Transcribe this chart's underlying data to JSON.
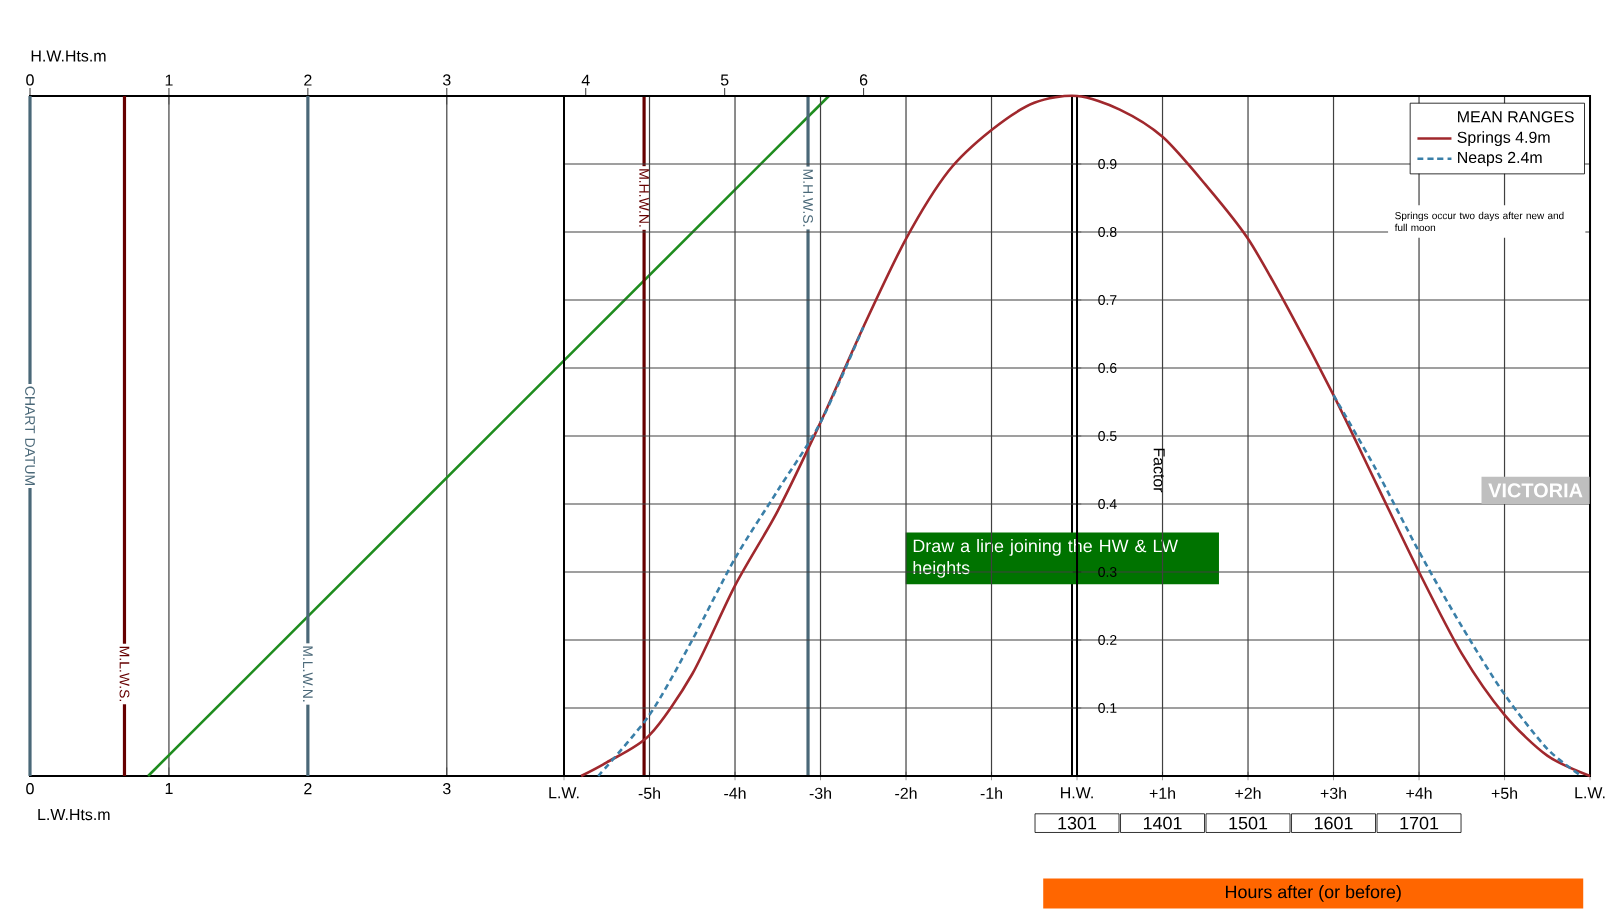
{
  "chart_data": [
    {
      "type": "line",
      "x2label": "H.W.Hts.m",
      "xlabel": "L.W.Hts.m",
      "xlim": [
        0,
        7.5
      ],
      "xticks": [
        0,
        1,
        2,
        3
      ],
      "x2lim": [
        0,
        7.5
      ],
      "x2ticks": [
        0,
        1,
        2,
        3,
        4,
        5,
        6
      ],
      "ylim": [
        0,
        1
      ],
      "tick_labels": "x",
      "grid": "x",
      "series": [
        {
          "color": "#1e8c1e",
          "x": [
            0.85,
            5.75
          ],
          "values": [
            0,
            1
          ]
        }
      ],
      "ref_lines": [
        {
          "axis": "x",
          "value": 0,
          "label": "CHART DATUM"
        },
        {
          "axis": "x",
          "value": 0.68,
          "label": "M.L.W.S."
        },
        {
          "axis": "x",
          "value": 2.0,
          "label": "M.L.W.N."
        },
        {
          "axis": "x",
          "value": 4.42,
          "label": "M.H.W.N."
        },
        {
          "axis": "x",
          "value": 5.6,
          "label": "M.H.W.S."
        }
      ],
      "annotations": [
        "Draw a line joining the HW & LW heights"
      ]
    },
    {
      "type": "line",
      "ylabel": "Factor",
      "xlim": [
        -6,
        6
      ],
      "ylim": [
        0,
        1
      ],
      "yticks": [
        0.1,
        0.2,
        0.3,
        0.4,
        0.5,
        0.6,
        0.7,
        0.8,
        0.9
      ],
      "xticks": [
        {
          "value": -6,
          "label": "L.W."
        },
        {
          "value": -5,
          "label": "-5h"
        },
        {
          "value": -4,
          "label": "-4h"
        },
        {
          "value": -3,
          "label": "-3h"
        },
        {
          "value": -2,
          "label": "-2h"
        },
        {
          "value": -1,
          "label": "-1h"
        },
        {
          "value": 0,
          "label": "H.W."
        },
        {
          "value": 1,
          "label": "+1h"
        },
        {
          "value": 2,
          "label": "+2h"
        },
        {
          "value": 3,
          "label": "+3h"
        },
        {
          "value": 4,
          "label": "+4h"
        },
        {
          "value": 5,
          "label": "+5h"
        },
        {
          "value": 6,
          "label": "L.W."
        }
      ],
      "grid": true,
      "legend": "top right",
      "legend_title": "MEAN RANGES",
      "series": [
        {
          "name": "Springs  4.9m",
          "color": "#a0282d",
          "line_style": "solid",
          "x": [
            -5.8,
            -5.5,
            -5,
            -4.5,
            -4,
            -3.5,
            -3,
            -2.5,
            -2,
            -1.5,
            -1,
            -0.5,
            0,
            0.5,
            1,
            1.5,
            2,
            2.5,
            3,
            3.5,
            4,
            4.5,
            5,
            5.5,
            6
          ],
          "values": [
            0,
            0.02,
            0.06,
            0.15,
            0.28,
            0.39,
            0.52,
            0.66,
            0.79,
            0.89,
            0.95,
            0.99,
            1.0,
            0.98,
            0.94,
            0.87,
            0.79,
            0.68,
            0.56,
            0.43,
            0.3,
            0.18,
            0.09,
            0.03,
            0
          ]
        },
        {
          "name": "Neaps  2.4m",
          "color": "#3a7fa8",
          "line_style": "dashed",
          "x": [
            -5.6,
            -5,
            -4.5,
            -4,
            -3.5,
            -3,
            -2.5
          ],
          "values": [
            0,
            0.09,
            0.2,
            0.32,
            0.42,
            0.52,
            0.66
          ]
        },
        {
          "name": null,
          "color": "#3a7fa8",
          "line_style": "dashed",
          "x": [
            3,
            3.5,
            4,
            4.5,
            5,
            5.5,
            5.9
          ],
          "values": [
            0.56,
            0.45,
            0.33,
            0.22,
            0.12,
            0.04,
            0
          ]
        }
      ],
      "annotations": [
        "Springs occur two days after new and full moon",
        "VICTORIA",
        "1301",
        "1401",
        "1501",
        "1601",
        "1701",
        "Hours after (or before)"
      ]
    }
  ]
}
